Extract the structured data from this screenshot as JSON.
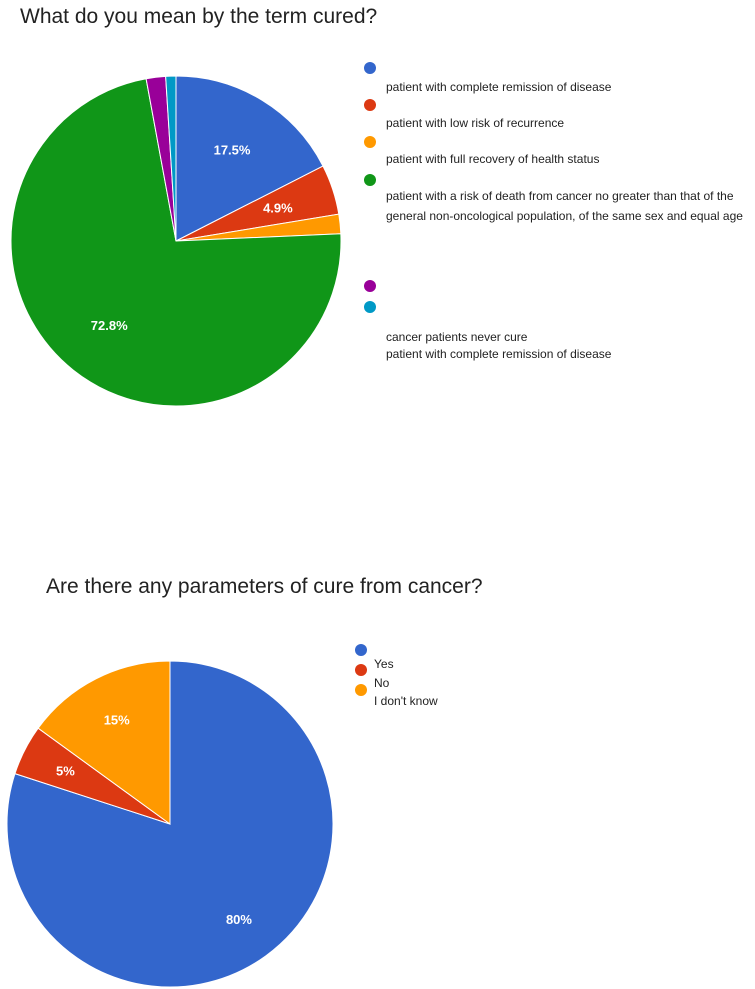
{
  "chart_data": [
    {
      "type": "pie",
      "title": "What do you mean by the term cured?",
      "legend_position": "right",
      "slices": [
        {
          "label": "",
          "value": 17.5,
          "color": "#3366cc",
          "data_label": "17.5%"
        },
        {
          "label": "patient with complete remission of disease",
          "value": 4.9,
          "color": "#dc3912",
          "data_label": "4.9%"
        },
        {
          "label": "patient with low risk of recurrence",
          "value": 1.9,
          "color": "#ff9900",
          "data_label": ""
        },
        {
          "label": "patient with full recovery of health status",
          "value": 72.8,
          "color": "#109618",
          "data_label": "72.8%"
        },
        {
          "label": "patient with a risk of death from cancer no greater than that of the general non-oncological population, of the same sex and equal age",
          "value": 1.9,
          "color": "#990099",
          "data_label": ""
        },
        {
          "label": "",
          "value": 1.0,
          "color": "#0099c6",
          "data_label": ""
        }
      ],
      "extra_legend_text": [
        "cancer patients never cure",
        "patient with complete remission of disease"
      ]
    },
    {
      "type": "pie",
      "title": "Are there any parameters of cure from cancer?",
      "legend_position": "right",
      "slices": [
        {
          "label": "",
          "value": 80,
          "color": "#3366cc",
          "data_label": "80%"
        },
        {
          "label": "Yes",
          "value": 5,
          "color": "#dc3912",
          "data_label": "5%"
        },
        {
          "label": "No",
          "value": 15,
          "color": "#ff9900",
          "data_label": "15%"
        }
      ],
      "extra_legend_text": [
        "I don't know"
      ]
    }
  ]
}
